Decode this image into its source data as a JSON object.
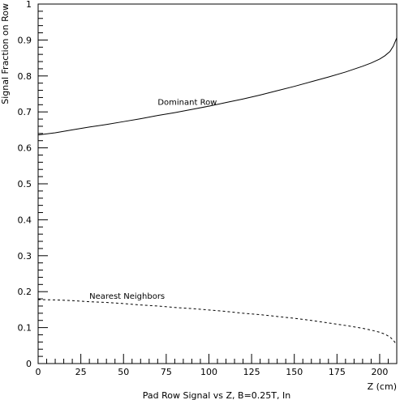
{
  "chart_data": {
    "type": "line",
    "caption": "Pad Row Signal vs Z, B=0.25T, In",
    "xlabel": "Z (cm)",
    "ylabel": "Signal Fraction on Row",
    "xlim": [
      0,
      210
    ],
    "ylim": [
      0,
      1
    ],
    "x_ticks": [
      0,
      25,
      50,
      75,
      100,
      125,
      150,
      175,
      200
    ],
    "x_tick_labels": [
      "0",
      "25",
      "50",
      "75",
      "100",
      "125",
      "150",
      "175",
      "200"
    ],
    "y_ticks": [
      0,
      0.1,
      0.2,
      0.3,
      0.4,
      0.5,
      0.6,
      0.7,
      0.8,
      0.9,
      1
    ],
    "y_tick_labels": [
      "0",
      "0.1",
      "0.2",
      "0.3",
      "0.4",
      "0.5",
      "0.6",
      "0.7",
      "0.8",
      "0.9",
      "1"
    ],
    "grid": false,
    "series": [
      {
        "name": "Dominant Row",
        "style": "solid",
        "color": "#000000",
        "label_at": [
          70,
          0.72
        ],
        "x": [
          0,
          10,
          20,
          30,
          40,
          50,
          60,
          70,
          80,
          90,
          100,
          110,
          120,
          130,
          140,
          150,
          160,
          170,
          180,
          190,
          195,
          200,
          203,
          206,
          208,
          210
        ],
        "y": [
          0.636,
          0.642,
          0.65,
          0.658,
          0.665,
          0.673,
          0.681,
          0.69,
          0.698,
          0.707,
          0.716,
          0.726,
          0.736,
          0.747,
          0.759,
          0.771,
          0.784,
          0.797,
          0.811,
          0.827,
          0.836,
          0.847,
          0.856,
          0.868,
          0.883,
          0.906
        ]
      },
      {
        "name": "Nearest Neighbors",
        "style": "dashed",
        "color": "#000000",
        "label_at": [
          30,
          0.18
        ],
        "x": [
          0,
          10,
          20,
          30,
          40,
          50,
          60,
          70,
          80,
          90,
          100,
          110,
          120,
          130,
          140,
          150,
          160,
          170,
          180,
          190,
          195,
          200,
          203,
          206,
          208,
          210
        ],
        "y": [
          0.178,
          0.177,
          0.175,
          0.172,
          0.17,
          0.167,
          0.163,
          0.16,
          0.156,
          0.153,
          0.149,
          0.145,
          0.14,
          0.136,
          0.131,
          0.126,
          0.12,
          0.113,
          0.106,
          0.098,
          0.093,
          0.087,
          0.082,
          0.074,
          0.065,
          0.052
        ]
      }
    ]
  }
}
